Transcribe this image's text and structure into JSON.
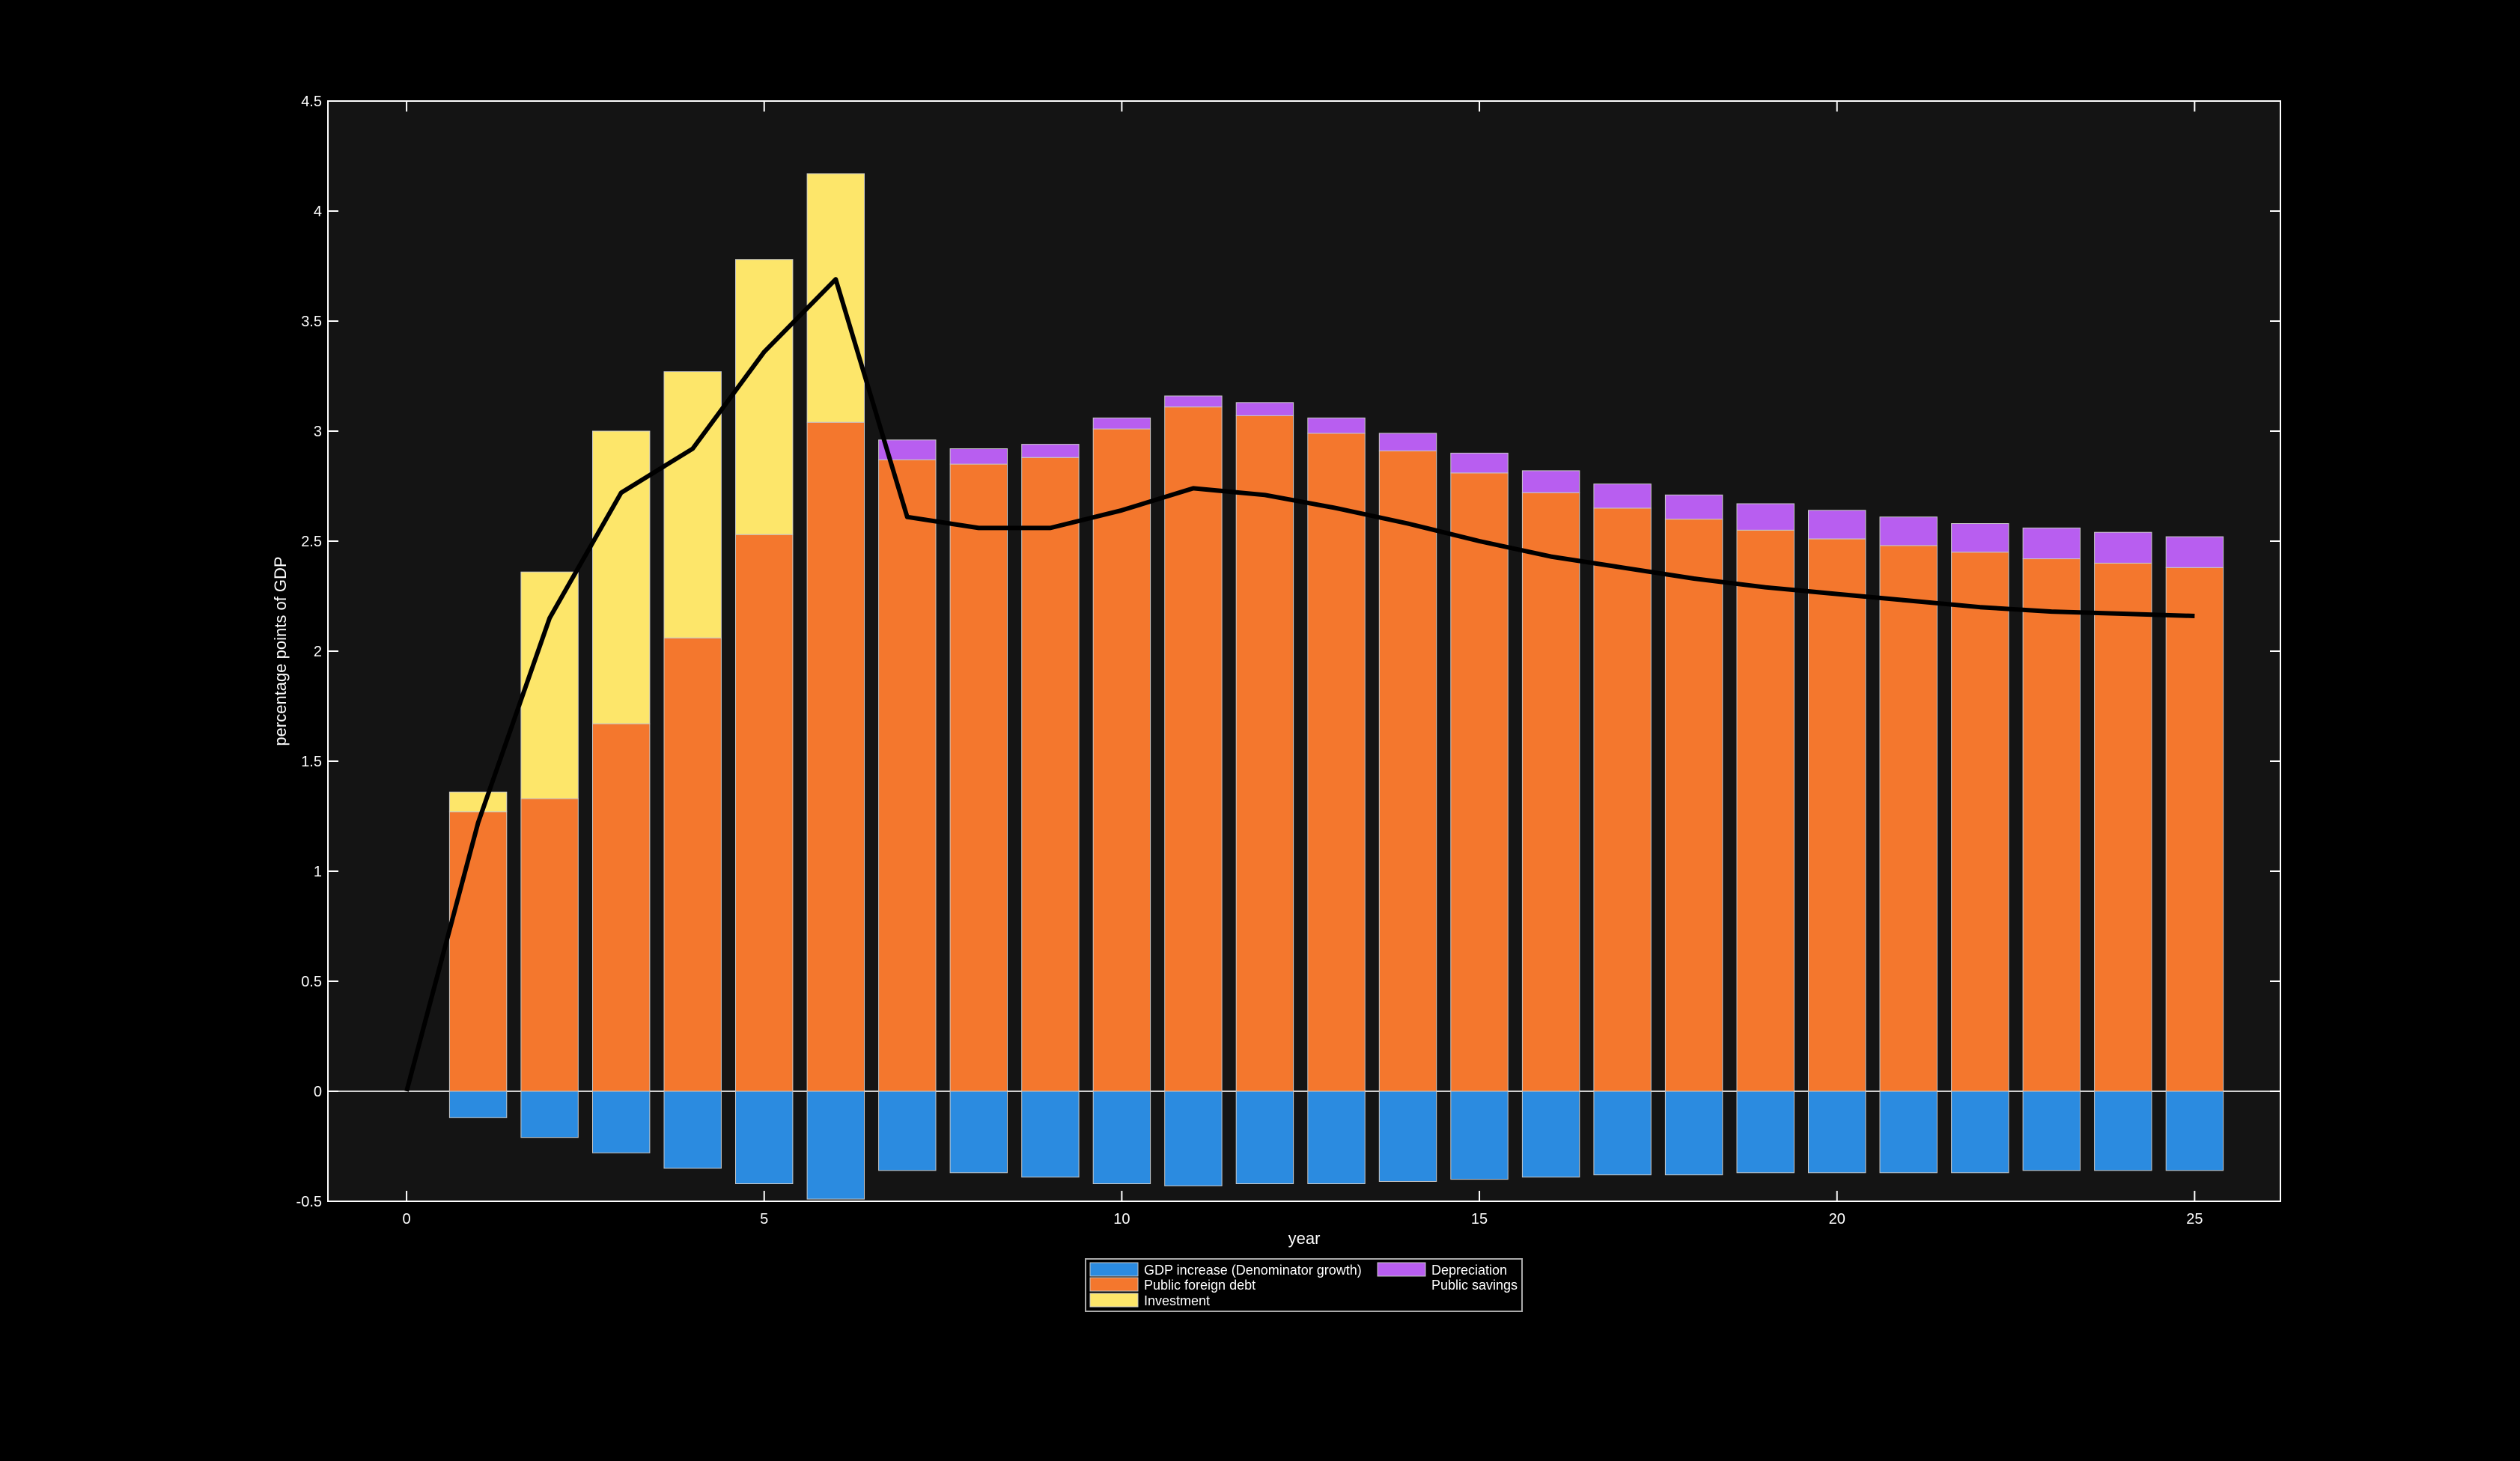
{
  "chart_data": {
    "type": "bar",
    "stacked": true,
    "xlabel": "year",
    "ylabel": "percentage points of GDP",
    "xlim": [
      -1.1,
      26.2
    ],
    "ylim": [
      -0.5,
      4.5
    ],
    "xticks": [
      0,
      5,
      10,
      15,
      20,
      25
    ],
    "yticks": [
      -0.5,
      0,
      0.5,
      1,
      1.5,
      2,
      2.5,
      3,
      3.5,
      4,
      4.5
    ],
    "x": [
      1,
      2,
      3,
      4,
      5,
      6,
      7,
      8,
      9,
      10,
      11,
      12,
      13,
      14,
      15,
      16,
      17,
      18,
      19,
      20,
      21,
      22,
      23,
      24,
      25
    ],
    "bar_series": [
      {
        "name": "GDP increase (Denominator growth)",
        "color": "#2b8be0",
        "values": [
          -0.12,
          -0.21,
          -0.28,
          -0.35,
          -0.42,
          -0.49,
          -0.36,
          -0.37,
          -0.39,
          -0.42,
          -0.43,
          -0.42,
          -0.42,
          -0.41,
          -0.4,
          -0.39,
          -0.38,
          -0.38,
          -0.37,
          -0.37,
          -0.37,
          -0.37,
          -0.36,
          -0.36,
          -0.36
        ]
      },
      {
        "name": "Public foreign debt",
        "color": "#f4772d",
        "values": [
          1.27,
          1.33,
          1.67,
          2.06,
          2.53,
          3.04,
          2.87,
          2.85,
          2.88,
          3.01,
          3.11,
          3.07,
          2.99,
          2.91,
          2.81,
          2.72,
          2.65,
          2.6,
          2.55,
          2.51,
          2.48,
          2.45,
          2.42,
          2.4,
          2.38
        ]
      },
      {
        "name": "Investment",
        "color": "#fde66a",
        "values": [
          0.09,
          1.03,
          1.33,
          1.21,
          1.25,
          1.13,
          0,
          0,
          0,
          0,
          0,
          0,
          0,
          0,
          0,
          0,
          0,
          0,
          0,
          0,
          0,
          0,
          0,
          0,
          0
        ]
      },
      {
        "name": "Depreciation",
        "color": "#b85ef0",
        "values": [
          0,
          0,
          0,
          0,
          0,
          0,
          0.09,
          0.07,
          0.06,
          0.05,
          0.05,
          0.06,
          0.07,
          0.08,
          0.09,
          0.1,
          0.11,
          0.11,
          0.12,
          0.13,
          0.13,
          0.13,
          0.14,
          0.14,
          0.14
        ]
      }
    ],
    "line_series": {
      "name": "Public savings",
      "color": "#000000",
      "x": [
        0,
        1,
        2,
        3,
        4,
        5,
        6,
        7,
        8,
        9,
        10,
        11,
        12,
        13,
        14,
        15,
        16,
        17,
        18,
        19,
        20,
        21,
        22,
        23,
        24,
        25
      ],
      "values": [
        0,
        1.22,
        2.15,
        2.72,
        2.92,
        3.36,
        3.69,
        2.61,
        2.56,
        2.56,
        2.64,
        2.74,
        2.71,
        2.65,
        2.58,
        2.5,
        2.43,
        2.38,
        2.33,
        2.29,
        2.26,
        2.23,
        2.2,
        2.18,
        2.17,
        2.16
      ]
    },
    "legend": {
      "placement": "bottom-center",
      "columns": 2,
      "order": [
        "GDP increase (Denominator growth)",
        "Depreciation",
        "Public foreign debt",
        "Public savings",
        "Investment"
      ]
    },
    "grid": false,
    "colors": {
      "background": "#000000",
      "axes_background": "#141414",
      "axis": "#ffffff",
      "zero_line": "#d0d0d0"
    }
  }
}
